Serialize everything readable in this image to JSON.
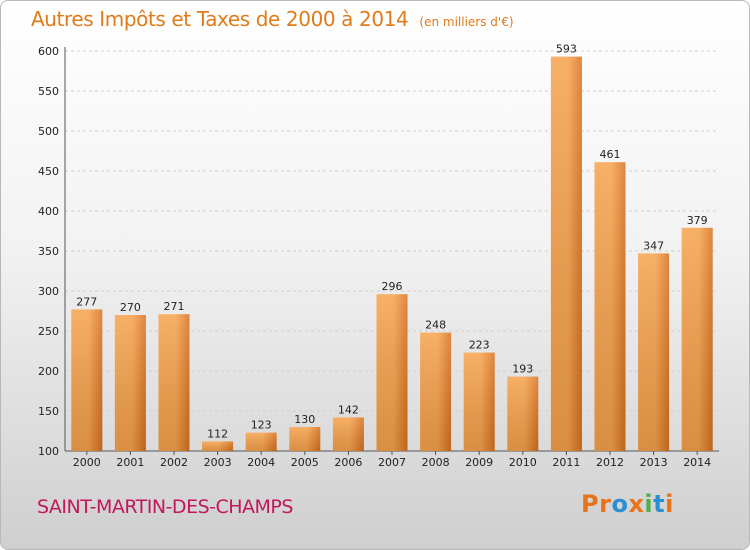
{
  "header": {
    "title": "Autres Impôts et Taxes de 2000 à 2014",
    "unit": "(en milliers d'€)"
  },
  "footer": {
    "place": "SAINT-MARTIN-DES-CHAMPS",
    "logo": "Proxiti",
    "logo_colors": [
      "#e8731a",
      "#e8731a",
      "#2a8fd1",
      "#e8731a",
      "#4caf50",
      "#2a8fd1",
      "#e8731a"
    ]
  },
  "colors": {
    "bar_light": "#f6a24c",
    "bar_dark": "#d9711d",
    "grid": "#cfcfcf",
    "title": "#e07b1a",
    "place": "#c2185b"
  },
  "chart_data": {
    "type": "bar",
    "title": "Autres Impôts et Taxes de 2000 à 2014",
    "subtitle": "(en milliers d'€)",
    "categories": [
      "2000",
      "2001",
      "2002",
      "2003",
      "2004",
      "2005",
      "2006",
      "2007",
      "2008",
      "2009",
      "2010",
      "2011",
      "2012",
      "2013",
      "2014"
    ],
    "values": [
      277,
      270,
      271,
      112,
      123,
      130,
      142,
      296,
      248,
      223,
      193,
      593,
      461,
      347,
      379
    ],
    "ylim": [
      100,
      600
    ],
    "yticks": [
      100,
      150,
      200,
      250,
      300,
      350,
      400,
      450,
      500,
      550,
      600
    ],
    "grid": "horizontal-dashed",
    "legend": "none"
  }
}
